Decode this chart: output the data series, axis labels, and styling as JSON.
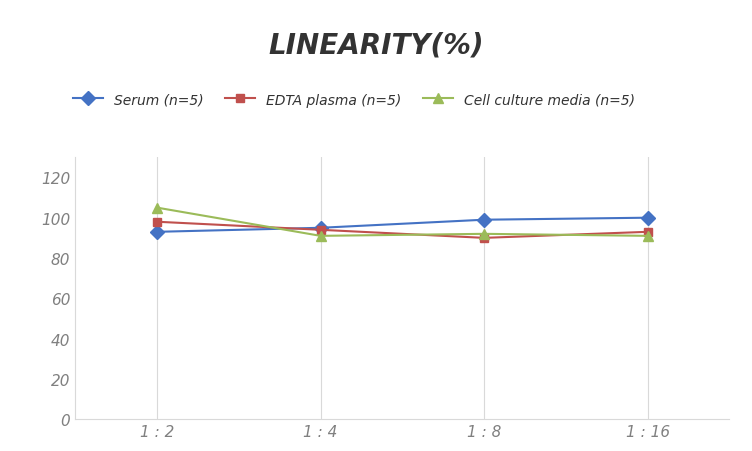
{
  "title": "LINEARITY(%)",
  "x_labels": [
    "1 : 2",
    "1 : 4",
    "1 : 8",
    "1 : 16"
  ],
  "x_positions": [
    0,
    1,
    2,
    3
  ],
  "series": [
    {
      "label": "Serum (n=5)",
      "values": [
        93,
        95,
        99,
        100
      ],
      "color": "#4472C4",
      "marker": "D",
      "markersize": 7
    },
    {
      "label": "EDTA plasma (n=5)",
      "values": [
        98,
        94,
        90,
        93
      ],
      "color": "#C0504D",
      "marker": "s",
      "markersize": 6
    },
    {
      "label": "Cell culture media (n=5)",
      "values": [
        105,
        91,
        92,
        91
      ],
      "color": "#9BBB59",
      "marker": "^",
      "markersize": 7
    }
  ],
  "ylim": [
    0,
    130
  ],
  "yticks": [
    0,
    20,
    40,
    60,
    80,
    100,
    120
  ],
  "grid_color": "#D9D9D9",
  "background_color": "#FFFFFF",
  "title_fontsize": 20,
  "legend_fontsize": 10,
  "tick_fontsize": 11,
  "tick_color": "#808080"
}
